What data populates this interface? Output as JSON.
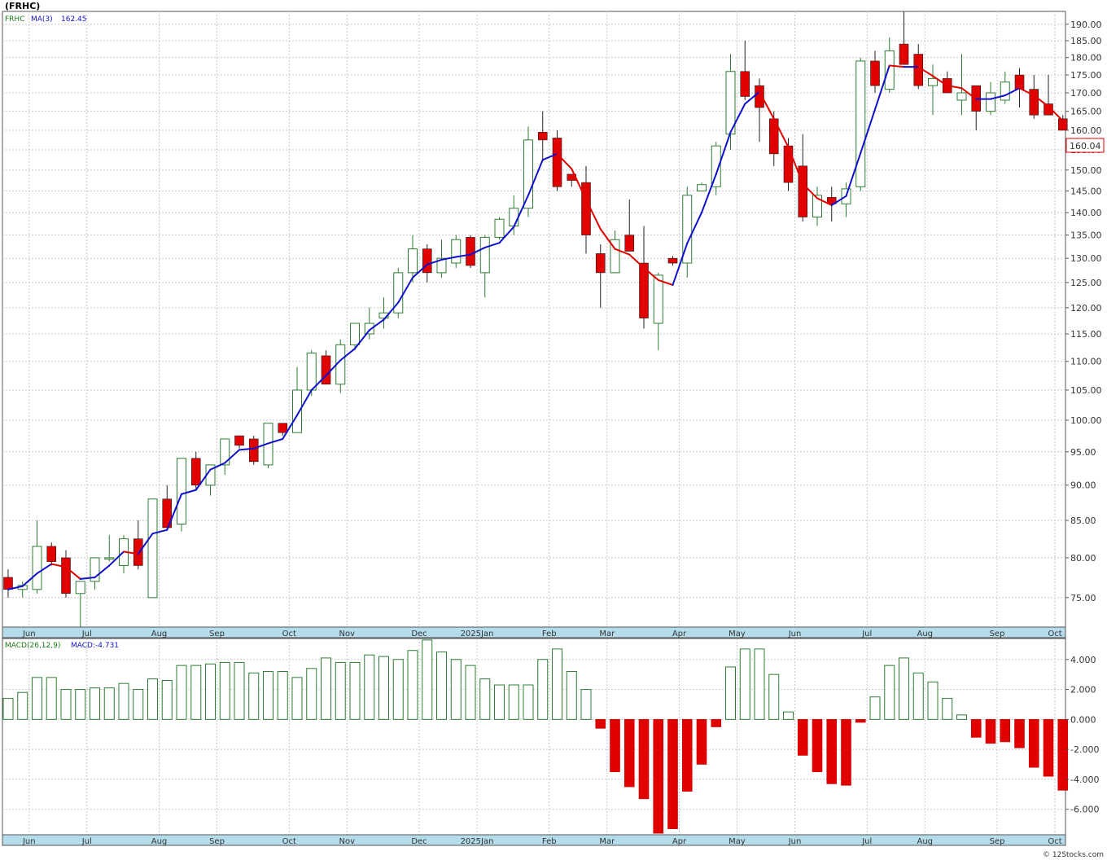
{
  "symbol_label": "(FRHC)",
  "price_panel": {
    "ticker": "FRHC",
    "ma_label": "MA(3)",
    "ma_value": "162.45",
    "last_price": "160.04"
  },
  "macd_panel": {
    "label": "MACD(26,12,9)",
    "value_label": "MACD:-4.731"
  },
  "watermark": "© 12Stocks.com",
  "colors": {
    "up_candle": "#2e7d32",
    "down_candle": "#e00000",
    "ma_rising": "#1010cc",
    "ma_falling": "#e00000",
    "axis_band": "#b5dceb",
    "grid": "#c8c8c8"
  },
  "chart_data": [
    {
      "type": "candlestick",
      "x_labels": [
        "Jun",
        "Jul",
        "Aug",
        "Sep",
        "Oct",
        "Nov",
        "Dec",
        "2025Jan",
        "Feb",
        "Mar",
        "Apr",
        "May",
        "Jun",
        "Jul",
        "Aug",
        "Sep",
        "Oct"
      ],
      "x_label_week_index": [
        1,
        5,
        10,
        14,
        19,
        23,
        28,
        32,
        37,
        41,
        46,
        50,
        54,
        59,
        63,
        68,
        72
      ],
      "y_ticks": [
        75,
        80,
        85,
        90,
        95,
        100,
        105,
        110,
        115,
        120,
        125,
        130,
        135,
        140,
        145,
        150,
        155,
        160,
        165,
        170,
        175,
        180,
        185,
        190
      ],
      "y_scale": "log",
      "ylim": [
        71.5,
        194
      ],
      "series": [
        {
          "name": "FRHC",
          "candles": [
            {
              "o": 77.5,
              "h": 78.5,
              "l": 75,
              "c": 76
            },
            {
              "o": 76,
              "h": 77,
              "l": 75,
              "c": 76.5
            },
            {
              "o": 76,
              "h": 85,
              "l": 75.5,
              "c": 81.5
            },
            {
              "o": 81.5,
              "h": 82,
              "l": 79,
              "c": 79.5
            },
            {
              "o": 80,
              "h": 81,
              "l": 75,
              "c": 75.5
            },
            {
              "o": 75.5,
              "h": 77,
              "l": 71.5,
              "c": 77
            },
            {
              "o": 77,
              "h": 80,
              "l": 76,
              "c": 80
            },
            {
              "o": 80,
              "h": 83,
              "l": 79.5,
              "c": 80
            },
            {
              "o": 79,
              "h": 83,
              "l": 78,
              "c": 82.5
            },
            {
              "o": 82.5,
              "h": 85,
              "l": 78.5,
              "c": 79
            },
            {
              "o": 75,
              "h": 88,
              "l": 75,
              "c": 88
            },
            {
              "o": 88,
              "h": 90,
              "l": 84,
              "c": 84
            },
            {
              "o": 84.5,
              "h": 94,
              "l": 83.5,
              "c": 94
            },
            {
              "o": 94,
              "h": 95,
              "l": 89.5,
              "c": 90
            },
            {
              "o": 90,
              "h": 93,
              "l": 88.5,
              "c": 93
            },
            {
              "o": 93,
              "h": 97,
              "l": 91.5,
              "c": 97
            },
            {
              "o": 97.5,
              "h": 97.5,
              "l": 95.5,
              "c": 96
            },
            {
              "o": 97,
              "h": 97.5,
              "l": 93,
              "c": 93.5
            },
            {
              "o": 93,
              "h": 99.5,
              "l": 92.5,
              "c": 99.5
            },
            {
              "o": 99.5,
              "h": 99.5,
              "l": 97.5,
              "c": 98
            },
            {
              "o": 98,
              "h": 109,
              "l": 98,
              "c": 105
            },
            {
              "o": 105,
              "h": 112,
              "l": 104,
              "c": 111.5
            },
            {
              "o": 111,
              "h": 112,
              "l": 106,
              "c": 106
            },
            {
              "o": 106,
              "h": 114,
              "l": 104.5,
              "c": 113
            },
            {
              "o": 113,
              "h": 117,
              "l": 112,
              "c": 117
            },
            {
              "o": 115,
              "h": 120,
              "l": 114,
              "c": 117
            },
            {
              "o": 118,
              "h": 122,
              "l": 116,
              "c": 119
            },
            {
              "o": 119,
              "h": 128,
              "l": 118,
              "c": 127
            },
            {
              "o": 127,
              "h": 135,
              "l": 125,
              "c": 132
            },
            {
              "o": 132,
              "h": 133,
              "l": 125,
              "c": 127
            },
            {
              "o": 127,
              "h": 134,
              "l": 126,
              "c": 130
            },
            {
              "o": 129,
              "h": 135,
              "l": 128,
              "c": 134
            },
            {
              "o": 134.5,
              "h": 135,
              "l": 128,
              "c": 128.5
            },
            {
              "o": 127,
              "h": 135,
              "l": 122,
              "c": 134.5
            },
            {
              "o": 134.5,
              "h": 139,
              "l": 134,
              "c": 138.5
            },
            {
              "o": 137,
              "h": 144,
              "l": 135,
              "c": 141
            },
            {
              "o": 141,
              "h": 161,
              "l": 139,
              "c": 157.5
            },
            {
              "o": 159.5,
              "h": 165,
              "l": 152,
              "c": 157.5
            },
            {
              "o": 158,
              "h": 160,
              "l": 145,
              "c": 146
            },
            {
              "o": 149,
              "h": 149,
              "l": 146,
              "c": 147.5
            },
            {
              "o": 147,
              "h": 151,
              "l": 131,
              "c": 135
            },
            {
              "o": 131,
              "h": 133,
              "l": 120,
              "c": 127
            },
            {
              "o": 127,
              "h": 136,
              "l": 127,
              "c": 134
            },
            {
              "o": 135,
              "h": 143,
              "l": 131.5,
              "c": 131.5
            },
            {
              "o": 129,
              "h": 137,
              "l": 116,
              "c": 118
            },
            {
              "o": 117,
              "h": 127,
              "l": 112,
              "c": 126.5
            },
            {
              "o": 130,
              "h": 130.5,
              "l": 128.5,
              "c": 129
            },
            {
              "o": 129,
              "h": 146,
              "l": 126,
              "c": 144
            },
            {
              "o": 145,
              "h": 147,
              "l": 145,
              "c": 146.5
            },
            {
              "o": 146,
              "h": 157,
              "l": 144,
              "c": 156
            },
            {
              "o": 159,
              "h": 181,
              "l": 155,
              "c": 176
            },
            {
              "o": 176,
              "h": 185,
              "l": 168,
              "c": 169
            },
            {
              "o": 172,
              "h": 174,
              "l": 157,
              "c": 166
            },
            {
              "o": 163,
              "h": 165,
              "l": 151,
              "c": 154
            },
            {
              "o": 156,
              "h": 158,
              "l": 145,
              "c": 147
            },
            {
              "o": 151,
              "h": 159,
              "l": 138,
              "c": 139
            },
            {
              "o": 139,
              "h": 146,
              "l": 137,
              "c": 144
            },
            {
              "o": 143.5,
              "h": 146,
              "l": 138,
              "c": 142
            },
            {
              "o": 142,
              "h": 147,
              "l": 139,
              "c": 145.5
            },
            {
              "o": 146,
              "h": 180,
              "l": 145,
              "c": 179
            },
            {
              "o": 179,
              "h": 182,
              "l": 170,
              "c": 172
            },
            {
              "o": 171,
              "h": 186,
              "l": 170,
              "c": 182
            },
            {
              "o": 184,
              "h": 194,
              "l": 178,
              "c": 178
            },
            {
              "o": 181,
              "h": 184,
              "l": 171,
              "c": 172
            },
            {
              "o": 172,
              "h": 178,
              "l": 164,
              "c": 174
            },
            {
              "o": 174,
              "h": 176,
              "l": 170,
              "c": 170
            },
            {
              "o": 168,
              "h": 181,
              "l": 164,
              "c": 170
            },
            {
              "o": 172,
              "h": 172,
              "l": 160,
              "c": 165
            },
            {
              "o": 165,
              "h": 173,
              "l": 164,
              "c": 170
            },
            {
              "o": 168,
              "h": 176,
              "l": 167,
              "c": 173
            },
            {
              "o": 175,
              "h": 177,
              "l": 166,
              "c": 171
            },
            {
              "o": 171,
              "h": 175,
              "l": 163,
              "c": 164
            },
            {
              "o": 167,
              "h": 175,
              "l": 164,
              "c": 164
            },
            {
              "o": 163,
              "h": 164,
              "l": 160,
              "c": 160
            }
          ]
        },
        {
          "name": "MA(3)",
          "values": [
            76,
            76.4,
            78,
            79.2,
            78.8,
            77.3,
            77.5,
            79,
            80.8,
            80.5,
            83.2,
            83.7,
            88.7,
            89.3,
            92.3,
            93.3,
            95.3,
            95.5,
            96.3,
            97,
            100.8,
            105,
            107.5,
            110.2,
            112.3,
            115.7,
            117.7,
            121,
            126,
            128.7,
            129.7,
            130.3,
            130.8,
            132.3,
            133.3,
            136.8,
            144,
            152.5,
            154,
            150.3,
            143,
            136.3,
            132,
            130.8,
            128,
            125.5,
            124.5,
            133.2,
            140,
            149,
            159.5,
            167,
            170.3,
            163,
            155.7,
            146.7,
            143.3,
            141.7,
            143.8,
            154.2,
            165.5,
            177.7,
            177.3,
            177.3,
            174.7,
            172,
            171.3,
            168.3,
            168.3,
            169.3,
            171.3,
            169.3,
            166.3,
            162.45
          ]
        }
      ]
    },
    {
      "type": "bar",
      "title": "MACD(26,12,9)",
      "y_ticks": [
        4,
        2,
        0,
        -2,
        -4,
        -6
      ],
      "ylim": [
        -7.7,
        5.4
      ],
      "series": [
        {
          "name": "MACD",
          "values": [
            1.4,
            1.8,
            2.8,
            2.8,
            2.0,
            2.0,
            2.1,
            2.1,
            2.4,
            2.0,
            2.7,
            2.6,
            3.6,
            3.6,
            3.7,
            3.8,
            3.8,
            3.1,
            3.2,
            3.2,
            2.8,
            3.4,
            4.1,
            3.8,
            3.8,
            4.3,
            4.2,
            4.0,
            4.6,
            5.3,
            4.5,
            4.0,
            3.6,
            2.7,
            2.3,
            2.3,
            2.3,
            4.0,
            4.7,
            3.2,
            2.0,
            -0.6,
            -3.5,
            -4.5,
            -5.3,
            -7.6,
            -7.3,
            -4.8,
            -3.0,
            -0.5,
            3.5,
            4.7,
            4.7,
            3.0,
            0.5,
            -2.4,
            -3.5,
            -4.3,
            -4.4,
            -0.2,
            1.5,
            3.6,
            4.1,
            3.1,
            2.5,
            1.4,
            0.3,
            -1.2,
            -1.6,
            -1.5,
            -1.9,
            -3.2,
            -3.8,
            -4.731
          ]
        }
      ]
    }
  ]
}
